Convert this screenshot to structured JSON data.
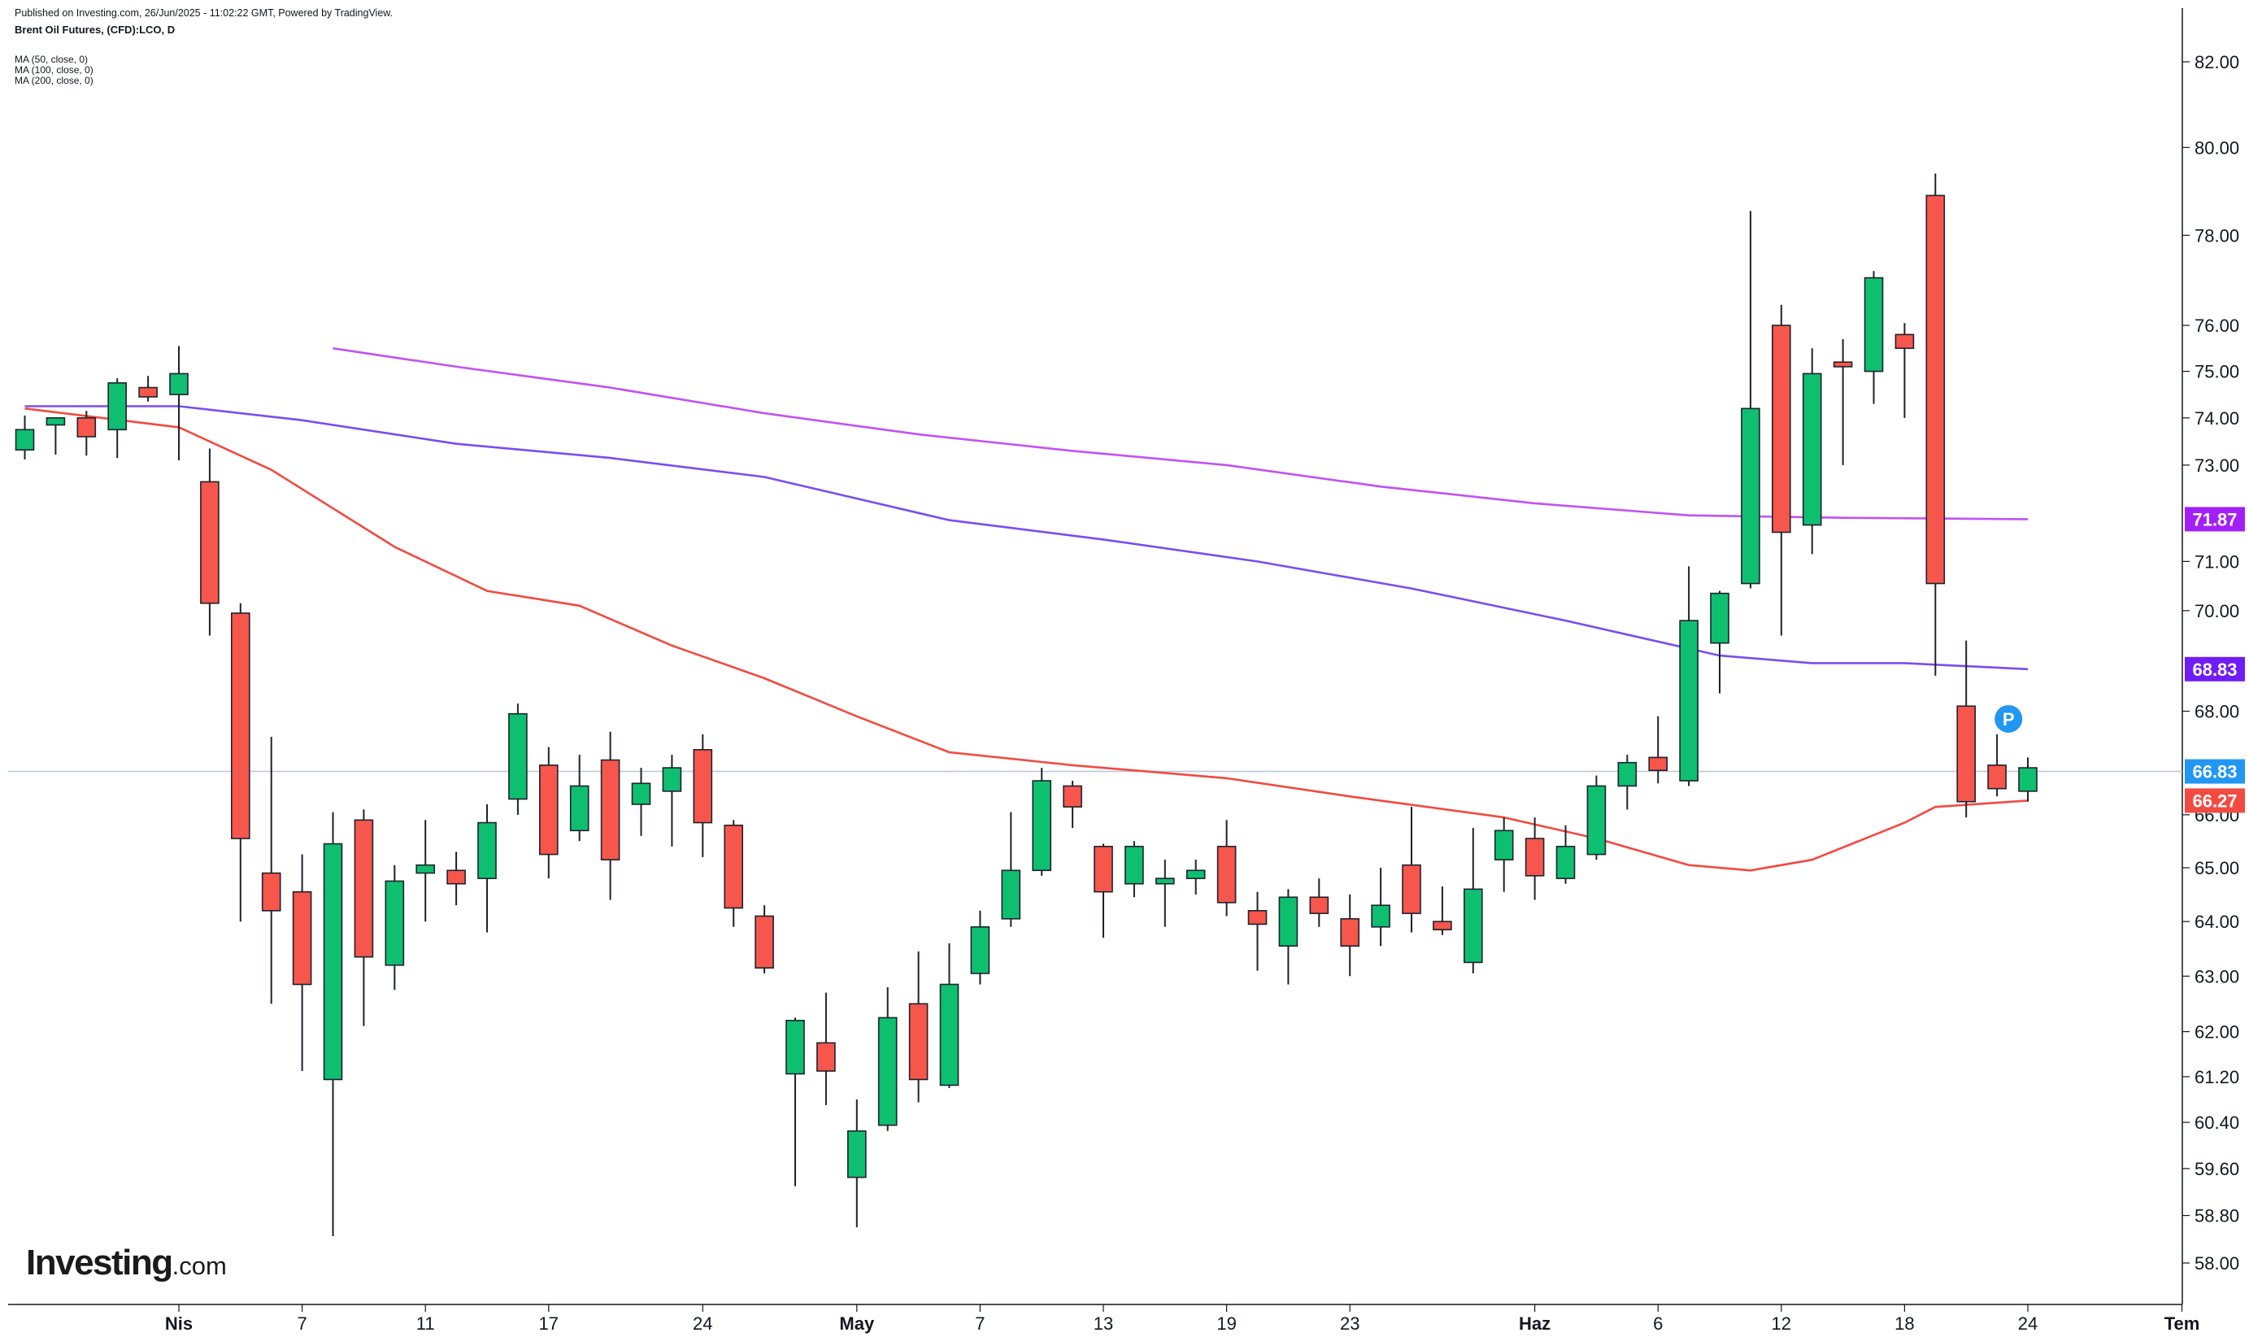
{
  "header": {
    "published": "Published on Investing.com, 26/Jun/2025 - 11:02:22 GMT, Powered by TradingView.",
    "symbol": "Brent Oil Futures, (CFD):LCO, D",
    "indicators": [
      "MA (50, close, 0)",
      "MA (100, close, 0)",
      "MA (200, close, 0)"
    ]
  },
  "logo": {
    "main": "Investing",
    "suffix": ".com"
  },
  "colors": {
    "up": "#0ebf6f",
    "down": "#f6564c",
    "ma50": "#f24a40",
    "ma100": "#7a4df2",
    "ma200": "#c251f5",
    "badge100": "#6f1cf5",
    "badge200": "#a31ff7",
    "price_line": "#b8c6da",
    "marker": "#2196f3"
  },
  "chart_data": {
    "type": "candlestick",
    "y_axis_ticks": [
      "82.00",
      "80.00",
      "78.00",
      "76.00",
      "75.00",
      "74.00",
      "73.00",
      "71.00",
      "70.00",
      "68.00",
      "66.00",
      "65.00",
      "64.00",
      "63.00",
      "62.00",
      "61.20",
      "60.40",
      "59.60",
      "58.80",
      "58.00"
    ],
    "y_axis_scale": "log",
    "x_axis_ticks": [
      {
        "label": "Nis",
        "date": "2025-04-01",
        "bold": true
      },
      {
        "label": "7",
        "date": "2025-04-07",
        "bold": false
      },
      {
        "label": "11",
        "date": "2025-04-11",
        "bold": false
      },
      {
        "label": "17",
        "date": "2025-04-17",
        "bold": false
      },
      {
        "label": "24",
        "date": "2025-04-24",
        "bold": false
      },
      {
        "label": "May",
        "date": "2025-05-01",
        "bold": true
      },
      {
        "label": "7",
        "date": "2025-05-07",
        "bold": false
      },
      {
        "label": "13",
        "date": "2025-05-13",
        "bold": false
      },
      {
        "label": "19",
        "date": "2025-05-19",
        "bold": false
      },
      {
        "label": "23",
        "date": "2025-05-23",
        "bold": false
      },
      {
        "label": "Haz",
        "date": "2025-06-02",
        "bold": true
      },
      {
        "label": "6",
        "date": "2025-06-06",
        "bold": false
      },
      {
        "label": "12",
        "date": "2025-06-12",
        "bold": false
      },
      {
        "label": "18",
        "date": "2025-06-18",
        "bold": false
      },
      {
        "label": "24",
        "date": "2025-06-24",
        "bold": false
      },
      {
        "label": "Tem",
        "date": "2025-07-01",
        "bold": true
      }
    ],
    "candles": [
      {
        "date": "2025-03-25",
        "open": 73.32,
        "high": 74.05,
        "low": 73.12,
        "close": 73.75
      },
      {
        "date": "2025-03-26",
        "open": 73.85,
        "high": 74.0,
        "low": 73.22,
        "close": 74.0
      },
      {
        "date": "2025-03-27",
        "open": 74.0,
        "high": 74.15,
        "low": 73.2,
        "close": 73.6
      },
      {
        "date": "2025-03-28",
        "open": 73.75,
        "high": 74.85,
        "low": 73.15,
        "close": 74.75
      },
      {
        "date": "2025-03-31",
        "open": 74.65,
        "high": 74.9,
        "low": 74.35,
        "close": 74.45
      },
      {
        "date": "2025-04-01",
        "open": 74.5,
        "high": 75.55,
        "low": 73.1,
        "close": 74.95
      },
      {
        "date": "2025-04-02",
        "open": 72.65,
        "high": 73.35,
        "low": 69.5,
        "close": 70.15
      },
      {
        "date": "2025-04-03",
        "open": 69.95,
        "high": 70.15,
        "low": 64.0,
        "close": 65.55
      },
      {
        "date": "2025-04-04",
        "open": 64.9,
        "high": 67.5,
        "low": 62.5,
        "close": 64.2
      },
      {
        "date": "2025-04-07",
        "open": 64.55,
        "high": 65.25,
        "low": 61.3,
        "close": 62.85
      },
      {
        "date": "2025-04-08",
        "open": 61.15,
        "high": 66.05,
        "low": 58.45,
        "close": 65.45
      },
      {
        "date": "2025-04-09",
        "open": 65.9,
        "high": 66.1,
        "low": 62.1,
        "close": 63.35
      },
      {
        "date": "2025-04-10",
        "open": 63.2,
        "high": 65.05,
        "low": 62.75,
        "close": 64.75
      },
      {
        "date": "2025-04-11",
        "open": 64.9,
        "high": 65.9,
        "low": 64.0,
        "close": 65.05
      },
      {
        "date": "2025-04-14",
        "open": 64.95,
        "high": 65.3,
        "low": 64.3,
        "close": 64.7
      },
      {
        "date": "2025-04-15",
        "open": 64.8,
        "high": 66.2,
        "low": 63.8,
        "close": 65.85
      },
      {
        "date": "2025-04-16",
        "open": 66.3,
        "high": 68.15,
        "low": 66.0,
        "close": 67.95
      },
      {
        "date": "2025-04-17",
        "open": 66.95,
        "high": 67.3,
        "low": 64.8,
        "close": 65.25
      },
      {
        "date": "2025-04-18",
        "open": 65.7,
        "high": 67.15,
        "low": 65.5,
        "close": 66.55
      },
      {
        "date": "2025-04-21",
        "open": 67.05,
        "high": 67.6,
        "low": 64.4,
        "close": 65.15
      },
      {
        "date": "2025-04-22",
        "open": 66.2,
        "high": 66.9,
        "low": 65.6,
        "close": 66.6
      },
      {
        "date": "2025-04-23",
        "open": 66.45,
        "high": 67.15,
        "low": 65.4,
        "close": 66.9
      },
      {
        "date": "2025-04-24",
        "open": 67.25,
        "high": 67.55,
        "low": 65.2,
        "close": 65.85
      },
      {
        "date": "2025-04-25",
        "open": 65.8,
        "high": 65.9,
        "low": 63.9,
        "close": 64.25
      },
      {
        "date": "2025-04-28",
        "open": 64.1,
        "high": 64.3,
        "low": 63.05,
        "close": 63.15
      },
      {
        "date": "2025-04-29",
        "open": 61.25,
        "high": 62.25,
        "low": 59.3,
        "close": 62.2
      },
      {
        "date": "2025-04-30",
        "open": 61.8,
        "high": 62.7,
        "low": 60.7,
        "close": 61.3
      },
      {
        "date": "2025-05-01",
        "open": 59.45,
        "high": 60.8,
        "low": 58.6,
        "close": 60.25
      },
      {
        "date": "2025-05-02",
        "open": 60.35,
        "high": 62.8,
        "low": 60.25,
        "close": 62.25
      },
      {
        "date": "2025-05-05",
        "open": 62.5,
        "high": 63.45,
        "low": 60.75,
        "close": 61.15
      },
      {
        "date": "2025-05-06",
        "open": 61.05,
        "high": 63.6,
        "low": 61.0,
        "close": 62.85
      },
      {
        "date": "2025-05-07",
        "open": 63.05,
        "high": 64.2,
        "low": 62.85,
        "close": 63.9
      },
      {
        "date": "2025-05-08",
        "open": 64.05,
        "high": 66.05,
        "low": 63.9,
        "close": 64.95
      },
      {
        "date": "2025-05-09",
        "open": 64.95,
        "high": 66.9,
        "low": 64.85,
        "close": 66.65
      },
      {
        "date": "2025-05-12",
        "open": 66.55,
        "high": 66.65,
        "low": 65.75,
        "close": 66.15
      },
      {
        "date": "2025-05-13",
        "open": 65.4,
        "high": 65.45,
        "low": 63.7,
        "close": 64.55
      },
      {
        "date": "2025-05-14",
        "open": 64.7,
        "high": 65.5,
        "low": 64.45,
        "close": 65.4
      },
      {
        "date": "2025-05-15",
        "open": 64.7,
        "high": 65.15,
        "low": 63.9,
        "close": 64.8
      },
      {
        "date": "2025-05-16",
        "open": 64.8,
        "high": 65.15,
        "low": 64.5,
        "close": 64.95
      },
      {
        "date": "2025-05-19",
        "open": 65.4,
        "high": 65.9,
        "low": 64.1,
        "close": 64.35
      },
      {
        "date": "2025-05-20",
        "open": 64.2,
        "high": 64.55,
        "low": 63.1,
        "close": 63.95
      },
      {
        "date": "2025-05-21",
        "open": 63.55,
        "high": 64.6,
        "low": 62.85,
        "close": 64.45
      },
      {
        "date": "2025-05-22",
        "open": 64.45,
        "high": 64.8,
        "low": 63.9,
        "close": 64.15
      },
      {
        "date": "2025-05-23",
        "open": 64.05,
        "high": 64.5,
        "low": 63.0,
        "close": 63.55
      },
      {
        "date": "2025-05-26",
        "open": 63.9,
        "high": 65.0,
        "low": 63.55,
        "close": 64.3
      },
      {
        "date": "2025-05-27",
        "open": 65.05,
        "high": 66.15,
        "low": 63.8,
        "close": 64.15
      },
      {
        "date": "2025-05-28",
        "open": 64.0,
        "high": 64.65,
        "low": 63.75,
        "close": 63.85
      },
      {
        "date": "2025-05-29",
        "open": 63.25,
        "high": 65.75,
        "low": 63.05,
        "close": 64.6
      },
      {
        "date": "2025-05-30",
        "open": 65.15,
        "high": 65.95,
        "low": 64.55,
        "close": 65.7
      },
      {
        "date": "2025-06-02",
        "open": 65.55,
        "high": 65.95,
        "low": 64.4,
        "close": 64.85
      },
      {
        "date": "2025-06-03",
        "open": 64.8,
        "high": 65.8,
        "low": 64.7,
        "close": 65.4
      },
      {
        "date": "2025-06-04",
        "open": 65.25,
        "high": 66.75,
        "low": 65.15,
        "close": 66.55
      },
      {
        "date": "2025-06-05",
        "open": 66.55,
        "high": 67.15,
        "low": 66.1,
        "close": 67.0
      },
      {
        "date": "2025-06-06",
        "open": 67.1,
        "high": 67.9,
        "low": 66.6,
        "close": 66.85
      },
      {
        "date": "2025-06-09",
        "open": 66.65,
        "high": 70.9,
        "low": 66.55,
        "close": 69.8
      },
      {
        "date": "2025-06-10",
        "open": 69.35,
        "high": 70.4,
        "low": 68.35,
        "close": 70.35
      },
      {
        "date": "2025-06-11",
        "open": 70.55,
        "high": 78.55,
        "low": 70.45,
        "close": 74.2
      },
      {
        "date": "2025-06-12",
        "open": 76.0,
        "high": 76.45,
        "low": 69.5,
        "close": 71.6
      },
      {
        "date": "2025-06-13",
        "open": 71.75,
        "high": 75.5,
        "low": 71.15,
        "close": 74.95
      },
      {
        "date": "2025-06-16",
        "open": 75.2,
        "high": 75.7,
        "low": 73.0,
        "close": 75.1
      },
      {
        "date": "2025-06-17",
        "open": 75.0,
        "high": 77.2,
        "low": 74.3,
        "close": 77.05
      },
      {
        "date": "2025-06-18",
        "open": 75.8,
        "high": 76.05,
        "low": 74.0,
        "close": 75.5
      },
      {
        "date": "2025-06-19",
        "open": 78.9,
        "high": 79.4,
        "low": 68.7,
        "close": 70.55
      },
      {
        "date": "2025-06-20",
        "open": 68.1,
        "high": 69.4,
        "low": 65.95,
        "close": 66.25
      },
      {
        "date": "2025-06-23",
        "open": 66.95,
        "high": 67.55,
        "low": 66.35,
        "close": 66.5
      },
      {
        "date": "2025-06-24",
        "open": 66.45,
        "high": 67.1,
        "low": 66.25,
        "close": 66.9
      }
    ],
    "series": [
      {
        "name": "MA (50, close, 0)",
        "color_key": "ma50",
        "points": [
          [
            "2025-03-25",
            74.2
          ],
          [
            "2025-04-01",
            73.8
          ],
          [
            "2025-04-04",
            72.9
          ],
          [
            "2025-04-10",
            71.3
          ],
          [
            "2025-04-15",
            70.4
          ],
          [
            "2025-04-18",
            70.1
          ],
          [
            "2025-04-23",
            69.3
          ],
          [
            "2025-04-28",
            68.65
          ],
          [
            "2025-05-01",
            67.9
          ],
          [
            "2025-05-06",
            67.2
          ],
          [
            "2025-05-12",
            66.95
          ],
          [
            "2025-05-19",
            66.7
          ],
          [
            "2025-05-23",
            66.35
          ],
          [
            "2025-05-30",
            65.95
          ],
          [
            "2025-06-04",
            65.55
          ],
          [
            "2025-06-09",
            65.05
          ],
          [
            "2025-06-11",
            64.95
          ],
          [
            "2025-06-13",
            65.15
          ],
          [
            "2025-06-18",
            65.85
          ],
          [
            "2025-06-19",
            66.15
          ],
          [
            "2025-06-24",
            66.27
          ]
        ]
      },
      {
        "name": "MA (100, close, 0)",
        "color_key": "ma100",
        "points": [
          [
            "2025-03-25",
            74.25
          ],
          [
            "2025-04-01",
            74.25
          ],
          [
            "2025-04-07",
            73.95
          ],
          [
            "2025-04-14",
            73.45
          ],
          [
            "2025-04-21",
            73.15
          ],
          [
            "2025-04-28",
            72.75
          ],
          [
            "2025-05-06",
            71.85
          ],
          [
            "2025-05-13",
            71.45
          ],
          [
            "2025-05-20",
            71.0
          ],
          [
            "2025-05-27",
            70.45
          ],
          [
            "2025-06-03",
            69.8
          ],
          [
            "2025-06-10",
            69.1
          ],
          [
            "2025-06-13",
            68.95
          ],
          [
            "2025-06-18",
            68.95
          ],
          [
            "2025-06-24",
            68.83
          ]
        ]
      },
      {
        "name": "MA (200, close, 0)",
        "color_key": "ma200",
        "points": [
          [
            "2025-04-08",
            75.5
          ],
          [
            "2025-04-14",
            75.1
          ],
          [
            "2025-04-21",
            74.65
          ],
          [
            "2025-04-28",
            74.1
          ],
          [
            "2025-05-05",
            73.65
          ],
          [
            "2025-05-12",
            73.3
          ],
          [
            "2025-05-19",
            73.0
          ],
          [
            "2025-05-26",
            72.55
          ],
          [
            "2025-06-02",
            72.2
          ],
          [
            "2025-06-09",
            71.95
          ],
          [
            "2025-06-16",
            71.9
          ],
          [
            "2025-06-24",
            71.87
          ]
        ]
      }
    ],
    "last_price": "66.83",
    "badges": [
      {
        "value": "71.87",
        "color_key": "badge200"
      },
      {
        "value": "68.83",
        "color_key": "badge100"
      },
      {
        "value": "66.83",
        "color_key": "marker"
      },
      {
        "value": "66.27",
        "color_key": "ma50"
      }
    ],
    "marker": {
      "label": "P",
      "date": "2025-06-20",
      "price": 67.85
    },
    "grid": false
  }
}
